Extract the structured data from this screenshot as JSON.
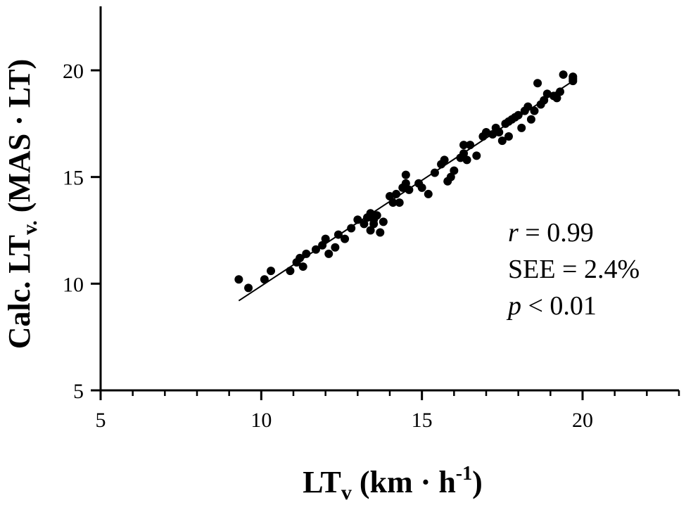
{
  "chart_data": {
    "type": "scatter",
    "xlabel": {
      "main": "LT",
      "sub": "v",
      "rest": " (km · h",
      "sup": "-1",
      "close": ")"
    },
    "ylabel": {
      "main": "Calc. LT",
      "sub": "v.",
      "rest": " (MAS · LT)"
    },
    "xlim": [
      5,
      23
    ],
    "ylim": [
      5,
      23
    ],
    "xticks": [
      5,
      10,
      15,
      20
    ],
    "yticks": [
      5,
      10,
      15,
      20
    ],
    "x_minor_step": 1,
    "grid": false,
    "points": [
      [
        9.3,
        10.2
      ],
      [
        9.6,
        9.8
      ],
      [
        10.1,
        10.2
      ],
      [
        10.3,
        10.6
      ],
      [
        10.9,
        10.6
      ],
      [
        11.1,
        11.0
      ],
      [
        11.2,
        11.2
      ],
      [
        11.3,
        10.8
      ],
      [
        11.4,
        11.4
      ],
      [
        11.7,
        11.6
      ],
      [
        11.9,
        11.8
      ],
      [
        12.0,
        12.1
      ],
      [
        12.1,
        11.4
      ],
      [
        12.3,
        11.7
      ],
      [
        12.4,
        12.3
      ],
      [
        12.6,
        12.1
      ],
      [
        12.8,
        12.6
      ],
      [
        13.0,
        13.0
      ],
      [
        13.2,
        12.8
      ],
      [
        13.3,
        13.1
      ],
      [
        13.4,
        12.5
      ],
      [
        13.4,
        13.3
      ],
      [
        13.5,
        13.0
      ],
      [
        13.5,
        12.8
      ],
      [
        13.6,
        13.2
      ],
      [
        13.7,
        12.4
      ],
      [
        13.8,
        12.9
      ],
      [
        14.0,
        14.1
      ],
      [
        14.1,
        13.8
      ],
      [
        14.2,
        14.2
      ],
      [
        14.3,
        13.8
      ],
      [
        14.4,
        14.5
      ],
      [
        14.5,
        14.7
      ],
      [
        14.5,
        15.1
      ],
      [
        14.6,
        14.4
      ],
      [
        14.9,
        14.7
      ],
      [
        15.0,
        14.5
      ],
      [
        15.2,
        14.2
      ],
      [
        15.4,
        15.2
      ],
      [
        15.6,
        15.6
      ],
      [
        15.7,
        15.8
      ],
      [
        15.8,
        14.8
      ],
      [
        15.9,
        15.0
      ],
      [
        16.0,
        15.3
      ],
      [
        16.2,
        15.9
      ],
      [
        16.3,
        16.1
      ],
      [
        16.3,
        16.5
      ],
      [
        16.4,
        15.8
      ],
      [
        16.5,
        16.5
      ],
      [
        16.7,
        16.0
      ],
      [
        16.9,
        16.9
      ],
      [
        17.0,
        17.1
      ],
      [
        17.2,
        17.0
      ],
      [
        17.3,
        17.3
      ],
      [
        17.4,
        17.1
      ],
      [
        17.5,
        16.7
      ],
      [
        17.6,
        17.5
      ],
      [
        17.7,
        17.6
      ],
      [
        17.7,
        16.9
      ],
      [
        17.8,
        17.7
      ],
      [
        17.9,
        17.8
      ],
      [
        18.0,
        17.9
      ],
      [
        18.1,
        17.3
      ],
      [
        18.2,
        18.1
      ],
      [
        18.3,
        18.3
      ],
      [
        18.4,
        17.7
      ],
      [
        18.5,
        18.1
      ],
      [
        18.6,
        19.4
      ],
      [
        18.7,
        18.4
      ],
      [
        18.8,
        18.6
      ],
      [
        18.9,
        18.9
      ],
      [
        19.1,
        18.8
      ],
      [
        19.2,
        18.7
      ],
      [
        19.3,
        19.0
      ],
      [
        19.4,
        19.8
      ],
      [
        19.7,
        19.6
      ],
      [
        19.7,
        19.7
      ],
      [
        19.7,
        19.5
      ]
    ],
    "fit_line": {
      "x": [
        9.3,
        19.7
      ],
      "y": [
        9.2,
        19.5
      ]
    },
    "annotations": {
      "r": {
        "symbol": "r",
        "text": " = 0.99"
      },
      "see": "SEE = 2.4%",
      "p": {
        "symbol": "p",
        "text": " < 0.01"
      }
    }
  }
}
